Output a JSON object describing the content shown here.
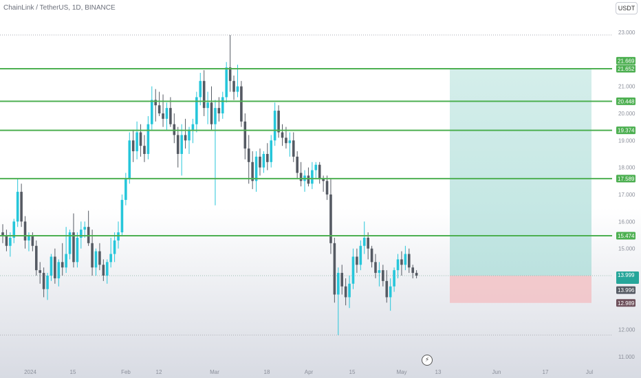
{
  "header": {
    "symbol": "ChainLink / TetherUS, 1D, BINANCE",
    "currency": "USDT"
  },
  "colors": {
    "up": "#26c6da",
    "down": "#555a63",
    "level_line": "#4caf50",
    "profit_zone": "#b2dfdb",
    "loss_zone": "#f2c4c8",
    "axis_text": "#8a8e99",
    "background": "#ffffff",
    "pane_bottom": "#d8dbe3"
  },
  "chart_data": {
    "type": "candlestick",
    "ylim": [
      11.0,
      23.5
    ],
    "y_ticks": [
      "23.000",
      "22.000",
      "21.000",
      "20.000",
      "19.000",
      "18.000",
      "17.000",
      "16.000",
      "15.000",
      "14.000",
      "13.000",
      "12.000",
      "11.000"
    ],
    "x_ticks": [
      "2024",
      "15",
      "Feb",
      "12",
      "Mar",
      "18",
      "Apr",
      "15",
      "May",
      "13",
      "Jun",
      "17",
      "Jul"
    ],
    "horizontal_levels": [
      {
        "value": 21.652,
        "label": "21.652"
      },
      {
        "value": 20.448,
        "label": "20.448"
      },
      {
        "value": 19.374,
        "label": "19.374"
      },
      {
        "value": 17.589,
        "label": "17.589"
      },
      {
        "value": 15.474,
        "label": "15.474"
      }
    ],
    "dotted_levels": [
      {
        "value": 22.9,
        "label": ""
      },
      {
        "value": 11.8,
        "label": ""
      }
    ],
    "position": {
      "target": 21.669,
      "entry": 13.999,
      "stop": 12.989,
      "target_label": "21.669",
      "entry_label": "13.999",
      "stop_label": "12.989"
    },
    "price_labels": [
      {
        "value": 21.669,
        "text": "21.669",
        "bg": "#4caf50"
      },
      {
        "value": 13.996,
        "text": "13.996",
        "bg": "#555a63"
      },
      {
        "value": 12.989,
        "text": "12.989",
        "bg": "#6d4f5a"
      }
    ],
    "candles": [
      [
        15.6,
        15.9,
        15.2,
        15.5
      ],
      [
        15.5,
        15.7,
        14.9,
        15.1
      ],
      [
        15.1,
        15.6,
        14.7,
        15.4
      ],
      [
        15.4,
        16.1,
        15.2,
        16.0
      ],
      [
        16.0,
        17.6,
        15.8,
        17.1
      ],
      [
        17.1,
        17.4,
        15.8,
        16.0
      ],
      [
        16.0,
        16.2,
        15.0,
        15.3
      ],
      [
        15.3,
        15.6,
        14.9,
        15.5
      ],
      [
        15.5,
        15.6,
        14.9,
        15.1
      ],
      [
        15.1,
        15.3,
        14.0,
        14.2
      ],
      [
        14.2,
        14.5,
        13.7,
        14.1
      ],
      [
        14.1,
        14.3,
        13.2,
        13.5
      ],
      [
        13.5,
        14.1,
        13.1,
        14.0
      ],
      [
        14.0,
        14.8,
        13.8,
        14.7
      ],
      [
        14.7,
        15.0,
        13.7,
        13.9
      ],
      [
        13.9,
        14.6,
        13.6,
        14.5
      ],
      [
        14.5,
        15.2,
        14.0,
        14.3
      ],
      [
        14.3,
        15.8,
        14.1,
        14.8
      ],
      [
        14.8,
        15.7,
        14.6,
        15.6
      ],
      [
        15.6,
        16.3,
        14.3,
        14.5
      ],
      [
        14.5,
        15.6,
        14.3,
        15.4
      ],
      [
        15.4,
        16.0,
        15.0,
        15.7
      ],
      [
        15.7,
        16.0,
        15.4,
        15.8
      ],
      [
        15.8,
        16.4,
        15.1,
        15.2
      ],
      [
        15.2,
        15.7,
        14.0,
        14.3
      ],
      [
        14.3,
        15.0,
        14.0,
        14.9
      ],
      [
        14.9,
        15.2,
        14.2,
        14.4
      ],
      [
        14.4,
        14.6,
        13.8,
        14.0
      ],
      [
        14.0,
        14.6,
        13.7,
        14.5
      ],
      [
        14.5,
        15.4,
        14.3,
        14.8
      ],
      [
        14.8,
        15.6,
        14.5,
        15.3
      ],
      [
        15.3,
        16.0,
        15.0,
        15.6
      ],
      [
        15.6,
        17.0,
        15.5,
        16.8
      ],
      [
        16.8,
        17.8,
        16.6,
        17.6
      ],
      [
        17.6,
        19.3,
        17.4,
        19.0
      ],
      [
        19.0,
        19.4,
        18.2,
        18.6
      ],
      [
        18.6,
        19.7,
        18.3,
        19.3
      ],
      [
        19.3,
        19.6,
        18.4,
        18.8
      ],
      [
        18.8,
        19.2,
        18.2,
        18.5
      ],
      [
        18.5,
        19.9,
        18.3,
        19.6
      ],
      [
        19.6,
        21.0,
        19.4,
        20.5
      ],
      [
        20.5,
        20.9,
        19.7,
        20.3
      ],
      [
        20.3,
        20.8,
        19.9,
        20.0
      ],
      [
        20.0,
        20.7,
        19.5,
        19.8
      ],
      [
        19.8,
        20.4,
        19.4,
        20.2
      ],
      [
        20.2,
        20.6,
        19.5,
        19.6
      ],
      [
        19.6,
        20.0,
        18.9,
        19.2
      ],
      [
        19.2,
        19.5,
        18.0,
        18.5
      ],
      [
        18.5,
        19.6,
        17.7,
        19.2
      ],
      [
        19.2,
        19.8,
        18.7,
        19.0
      ],
      [
        19.0,
        19.5,
        18.5,
        19.4
      ],
      [
        19.4,
        19.8,
        18.9,
        19.6
      ],
      [
        19.6,
        20.8,
        19.3,
        20.6
      ],
      [
        20.6,
        21.5,
        20.3,
        21.2
      ],
      [
        21.2,
        21.6,
        19.9,
        20.2
      ],
      [
        20.2,
        20.8,
        19.6,
        20.4
      ],
      [
        20.4,
        21.0,
        19.4,
        19.6
      ],
      [
        19.6,
        20.5,
        16.6,
        20.2
      ],
      [
        20.2,
        20.6,
        19.7,
        20.0
      ],
      [
        20.0,
        20.8,
        19.8,
        20.6
      ],
      [
        20.6,
        21.9,
        20.4,
        21.7
      ],
      [
        21.7,
        22.9,
        20.8,
        21.2
      ],
      [
        21.2,
        21.4,
        20.5,
        20.8
      ],
      [
        20.8,
        21.8,
        20.6,
        21.0
      ],
      [
        21.0,
        21.2,
        19.5,
        19.7
      ],
      [
        19.7,
        20.0,
        18.3,
        18.7
      ],
      [
        18.7,
        19.2,
        17.4,
        18.2
      ],
      [
        18.2,
        18.6,
        17.2,
        17.5
      ],
      [
        17.5,
        18.6,
        17.1,
        18.4
      ],
      [
        18.4,
        18.7,
        17.7,
        18.0
      ],
      [
        18.0,
        18.6,
        17.8,
        18.5
      ],
      [
        18.5,
        18.9,
        17.9,
        18.2
      ],
      [
        18.2,
        19.2,
        18.0,
        19.0
      ],
      [
        19.0,
        20.4,
        18.8,
        20.1
      ],
      [
        20.1,
        20.3,
        19.1,
        19.3
      ],
      [
        19.3,
        19.6,
        18.8,
        19.1
      ],
      [
        19.1,
        19.5,
        18.7,
        18.9
      ],
      [
        18.9,
        19.3,
        18.4,
        19.0
      ],
      [
        19.0,
        19.3,
        18.2,
        18.4
      ],
      [
        18.4,
        18.6,
        17.6,
        17.8
      ],
      [
        17.8,
        18.2,
        17.3,
        17.5
      ],
      [
        17.5,
        17.9,
        17.1,
        17.7
      ],
      [
        17.7,
        18.0,
        17.3,
        17.4
      ],
      [
        17.4,
        18.2,
        17.2,
        17.9
      ],
      [
        17.9,
        18.2,
        17.6,
        18.1
      ],
      [
        18.1,
        18.2,
        17.4,
        17.6
      ],
      [
        17.6,
        17.7,
        17.1,
        17.5
      ],
      [
        17.5,
        17.7,
        16.8,
        17.0
      ],
      [
        17.0,
        17.6,
        14.8,
        15.2
      ],
      [
        15.2,
        15.4,
        13.0,
        13.3
      ],
      [
        13.3,
        14.3,
        11.8,
        14.1
      ],
      [
        14.1,
        14.4,
        13.3,
        13.6
      ],
      [
        13.6,
        13.9,
        12.9,
        13.2
      ],
      [
        13.2,
        14.0,
        12.8,
        13.7
      ],
      [
        13.7,
        15.0,
        13.5,
        14.7
      ],
      [
        14.7,
        15.0,
        14.1,
        14.4
      ],
      [
        14.4,
        15.3,
        14.2,
        15.1
      ],
      [
        15.1,
        16.0,
        14.8,
        15.4
      ],
      [
        15.4,
        15.6,
        14.6,
        15.0
      ],
      [
        15.0,
        15.1,
        14.3,
        14.5
      ],
      [
        14.5,
        14.8,
        13.9,
        14.1
      ],
      [
        14.1,
        14.5,
        13.6,
        14.2
      ],
      [
        14.2,
        14.4,
        13.6,
        13.8
      ],
      [
        13.8,
        14.2,
        13.0,
        13.2
      ],
      [
        13.2,
        13.9,
        12.7,
        13.6
      ],
      [
        13.6,
        14.3,
        13.4,
        14.2
      ],
      [
        14.2,
        14.8,
        13.9,
        14.6
      ],
      [
        14.6,
        14.9,
        14.0,
        14.4
      ],
      [
        14.4,
        15.1,
        14.2,
        14.8
      ],
      [
        14.8,
        15.0,
        14.1,
        14.3
      ],
      [
        14.3,
        14.4,
        13.9,
        14.1
      ],
      [
        14.1,
        14.2,
        13.9,
        14.0
      ]
    ]
  }
}
